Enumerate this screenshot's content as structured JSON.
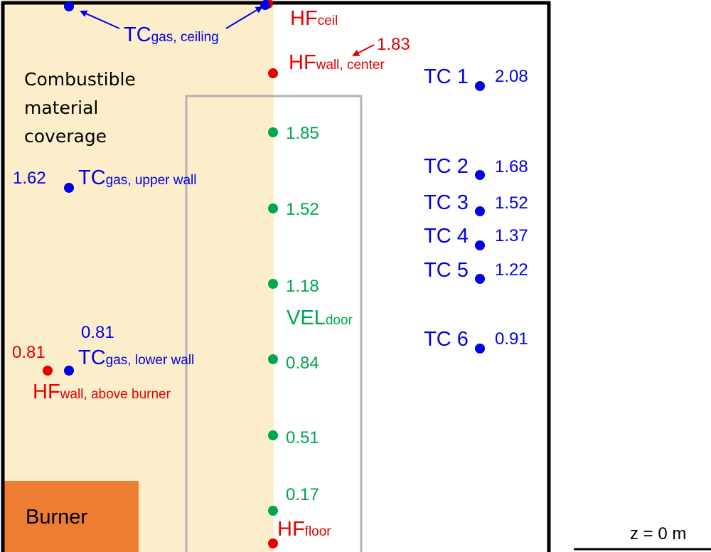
{
  "colors": {
    "combustible": "#fcedcb",
    "burner": "#ed7d31",
    "wall_outline": "#000000",
    "door_outline": "#b3b3b3",
    "tc": "#0000e6",
    "hf": "#e60000",
    "vel": "#00a64f"
  },
  "labels": {
    "combustible": [
      "Combustible",
      "material",
      "coverage"
    ],
    "burner": "Burner",
    "z_label": "z = 0 m"
  },
  "tc_gas": {
    "ceiling": {
      "main": "TC",
      "sub": "gas, ceiling"
    },
    "upper": {
      "main": "TC",
      "sub": "gas, upper wall",
      "value": "1.62"
    },
    "lower": {
      "main": "TC",
      "sub": "gas, lower wall",
      "value": "0.81"
    }
  },
  "hf": {
    "ceil": {
      "main": "HF",
      "sub": "ceil"
    },
    "center": {
      "main": "HF",
      "sub": "wall, center",
      "value": "1.83"
    },
    "above": {
      "main": "HF",
      "sub": "wall, above burner",
      "value": "0.81"
    },
    "floor": {
      "main": "HF",
      "sub": "floor"
    }
  },
  "vel": {
    "main": "VEL",
    "sub": "door",
    "heights": [
      "1.85",
      "1.52",
      "1.18",
      "0.84",
      "0.51",
      "0.17"
    ]
  },
  "tc_tree": [
    {
      "name": "TC 1",
      "height": "2.08"
    },
    {
      "name": "TC 2",
      "height": "1.68"
    },
    {
      "name": "TC 3",
      "height": "1.52"
    },
    {
      "name": "TC 4",
      "height": "1.37"
    },
    {
      "name": "TC 5",
      "height": "1.22"
    },
    {
      "name": "TC 6",
      "height": "0.91"
    }
  ]
}
